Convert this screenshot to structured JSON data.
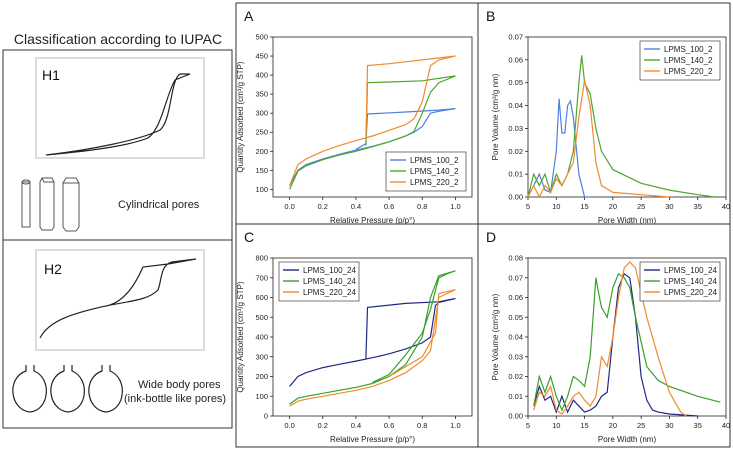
{
  "iupac": {
    "title": "Classification according to IUPAC",
    "h1": {
      "label": "H1",
      "caption": "Cylindrical pores"
    },
    "h2": {
      "label": "H2",
      "caption": "Wide body pores",
      "caption2": "(ink-bottle like pores)"
    }
  },
  "chart_data": [
    {
      "type": "line",
      "panel": "A",
      "xlabel": "Relative Pressure (p/p°)",
      "ylabel": "Quantity Adsorbed (cm³/g STP)",
      "xlim": [
        -0.1,
        1.1
      ],
      "ylim": [
        80,
        500
      ],
      "xticks": [
        {
          "value": 0,
          "label": "0.0"
        },
        0.2,
        0.4,
        0.6,
        0.8,
        {
          "value": 1,
          "label": "1.0"
        }
      ],
      "yticks": [
        100,
        150,
        200,
        250,
        300,
        350,
        400,
        450,
        500
      ],
      "legend": "lower right",
      "series": [
        {
          "name": "LPMS_100_2",
          "color": "#4f7fe0",
          "x": [
            0,
            0.05,
            0.1,
            0.2,
            0.3,
            0.4,
            0.5,
            0.6,
            0.7,
            0.75,
            0.8,
            0.85,
            0.9,
            1.0,
            0.9,
            0.7,
            0.47,
            0.46,
            0.4
          ],
          "values": [
            110,
            150,
            165,
            180,
            192,
            203,
            213,
            225,
            240,
            250,
            265,
            300,
            305,
            312,
            308,
            303,
            298,
            220,
            205
          ]
        },
        {
          "name": "LPMS_140_2",
          "color": "#4ea72e",
          "x": [
            0,
            0.05,
            0.1,
            0.2,
            0.3,
            0.4,
            0.5,
            0.6,
            0.7,
            0.75,
            0.8,
            0.85,
            0.9,
            1.0,
            0.8,
            0.6,
            0.47,
            0.46
          ],
          "values": [
            100,
            148,
            162,
            178,
            190,
            200,
            212,
            225,
            240,
            252,
            300,
            355,
            380,
            398,
            385,
            382,
            380,
            215
          ]
        },
        {
          "name": "LPMS_220_2",
          "color": "#f28a2e",
          "x": [
            0,
            0.05,
            0.1,
            0.2,
            0.3,
            0.4,
            0.5,
            0.6,
            0.7,
            0.75,
            0.8,
            0.85,
            0.9,
            1.0,
            0.8,
            0.6,
            0.47,
            0.46
          ],
          "values": [
            110,
            165,
            180,
            200,
            215,
            228,
            240,
            255,
            270,
            285,
            330,
            425,
            440,
            450,
            440,
            430,
            425,
            230
          ]
        }
      ]
    },
    {
      "type": "line",
      "panel": "B",
      "xlabel": "Pore Width (nm)",
      "ylabel": "Pore Volume (cm³/g nm)",
      "xlim": [
        5,
        40
      ],
      "ylim": [
        0,
        0.07
      ],
      "xticks": [
        5,
        10,
        15,
        20,
        25,
        30,
        35,
        40
      ],
      "yticks": [
        {
          "value": 0,
          "label": "0.00"
        },
        0.01,
        0.02,
        0.03,
        0.04,
        0.05,
        0.06,
        0.07
      ],
      "legend": "upper right",
      "series": [
        {
          "name": "LPMS_100_2",
          "color": "#4f7fe0",
          "x": [
            5,
            6,
            7,
            8,
            9,
            10,
            10.5,
            11,
            11.5,
            12,
            12.5,
            13,
            14,
            15,
            16
          ],
          "values": [
            0,
            0.005,
            0.01,
            0.003,
            0.002,
            0.02,
            0.043,
            0.028,
            0.028,
            0.04,
            0.042,
            0.035,
            0.01,
            0,
            0
          ]
        },
        {
          "name": "LPMS_140_2",
          "color": "#4ea72e",
          "x": [
            5,
            6,
            7,
            8,
            9,
            10,
            11,
            12,
            13,
            14,
            14.5,
            15,
            16,
            17,
            18,
            20,
            25,
            30,
            35,
            38
          ],
          "values": [
            0,
            0.01,
            0.005,
            0.01,
            0.002,
            0.01,
            0.005,
            0.01,
            0.02,
            0.05,
            0.062,
            0.05,
            0.045,
            0.03,
            0.02,
            0.012,
            0.006,
            0.003,
            0.001,
            0
          ]
        },
        {
          "name": "LPMS_220_2",
          "color": "#f28a2e",
          "x": [
            5,
            6,
            7,
            8,
            9,
            10,
            11,
            12,
            13,
            14,
            15,
            16,
            17,
            18,
            20,
            25,
            30
          ],
          "values": [
            0,
            0.005,
            0,
            0.005,
            0.002,
            0.008,
            0.005,
            0.01,
            0.015,
            0.035,
            0.051,
            0.04,
            0.015,
            0.005,
            0.002,
            0.001,
            0
          ]
        }
      ]
    },
    {
      "type": "line",
      "panel": "C",
      "xlabel": "Relative Pressure (p/p°)",
      "ylabel": "Quantity Adsorbed (cm³/g STP)",
      "xlim": [
        -0.1,
        1.1
      ],
      "ylim": [
        0,
        800
      ],
      "xticks": [
        {
          "value": 0,
          "label": "0.0"
        },
        0.2,
        0.4,
        0.6,
        0.8,
        {
          "value": 1,
          "label": "1.0"
        }
      ],
      "yticks": [
        0,
        100,
        200,
        300,
        400,
        500,
        600,
        700,
        800
      ],
      "legend": "upper left",
      "series": [
        {
          "name": "LPMS_100_24",
          "color": "#1f2a80",
          "x": [
            0,
            0.05,
            0.1,
            0.2,
            0.3,
            0.4,
            0.5,
            0.6,
            0.7,
            0.8,
            0.85,
            0.88,
            0.9,
            1.0,
            0.9,
            0.7,
            0.47,
            0.46
          ],
          "values": [
            150,
            200,
            220,
            245,
            262,
            278,
            295,
            315,
            340,
            370,
            400,
            560,
            575,
            595,
            578,
            570,
            550,
            290
          ]
        },
        {
          "name": "LPMS_140_24",
          "color": "#3aa02a",
          "x": [
            0,
            0.05,
            0.1,
            0.2,
            0.3,
            0.4,
            0.5,
            0.6,
            0.7,
            0.8,
            0.85,
            0.9,
            1.0,
            0.95,
            0.9,
            0.85,
            0.8,
            0.7,
            0.6,
            0.5
          ],
          "values": [
            60,
            90,
            100,
            115,
            130,
            145,
            165,
            200,
            260,
            400,
            600,
            710,
            735,
            720,
            700,
            540,
            420,
            310,
            210,
            170
          ]
        },
        {
          "name": "LPMS_220_24",
          "color": "#f28a2e",
          "x": [
            0,
            0.05,
            0.1,
            0.2,
            0.3,
            0.4,
            0.5,
            0.6,
            0.7,
            0.8,
            0.85,
            0.9,
            1.0,
            0.9,
            0.88,
            0.8,
            0.7,
            0.6
          ],
          "values": [
            50,
            75,
            85,
            100,
            115,
            130,
            150,
            180,
            220,
            280,
            330,
            600,
            640,
            620,
            420,
            300,
            250,
            200
          ]
        }
      ]
    },
    {
      "type": "line",
      "panel": "D",
      "xlabel": "Pore Width (nm)",
      "ylabel": "Pore Volume (cm³/g nm)",
      "xlim": [
        5,
        40
      ],
      "ylim": [
        0,
        0.08
      ],
      "xticks": [
        5,
        10,
        15,
        20,
        25,
        30,
        35,
        40
      ],
      "yticks": [
        {
          "value": 0,
          "label": "0.00"
        },
        0.01,
        0.02,
        0.03,
        0.04,
        0.05,
        0.06,
        0.07,
        0.08
      ],
      "legend": "upper right",
      "series": [
        {
          "name": "LPMS_100_24",
          "color": "#1f2a80",
          "x": [
            6,
            7,
            8,
            9,
            10,
            11,
            12,
            13,
            14,
            15,
            16,
            17,
            18,
            19,
            20,
            21,
            22,
            23,
            24,
            25,
            26,
            27,
            28,
            30,
            35
          ],
          "values": [
            0.005,
            0.015,
            0.008,
            0.01,
            0.002,
            0.01,
            0.002,
            0.008,
            0.005,
            0.002,
            0.003,
            0.005,
            0.01,
            0.012,
            0.04,
            0.065,
            0.072,
            0.07,
            0.05,
            0.02,
            0.008,
            0.003,
            0.002,
            0.001,
            0
          ]
        },
        {
          "name": "LPMS_140_24",
          "color": "#3aa02a",
          "x": [
            6,
            7,
            8,
            9,
            10,
            11,
            12,
            13,
            14,
            15,
            16,
            17,
            17.5,
            18,
            19,
            20,
            21,
            22,
            23,
            24,
            26,
            28,
            30,
            35,
            39
          ],
          "values": [
            0.005,
            0.02,
            0.012,
            0.02,
            0.01,
            0.003,
            0.01,
            0.02,
            0.018,
            0.015,
            0.03,
            0.07,
            0.062,
            0.055,
            0.05,
            0.065,
            0.072,
            0.07,
            0.065,
            0.05,
            0.025,
            0.018,
            0.015,
            0.01,
            0.007
          ]
        },
        {
          "name": "LPMS_220_24",
          "color": "#f28a2e",
          "x": [
            6,
            7,
            8,
            9,
            10,
            11,
            12,
            13,
            14,
            15,
            16,
            17,
            18,
            19,
            20,
            21,
            22,
            23,
            24,
            26,
            28,
            30,
            32,
            33
          ],
          "values": [
            0.003,
            0.012,
            0.01,
            0.015,
            0.003,
            0.001,
            0.005,
            0.01,
            0.012,
            0.008,
            0.005,
            0.01,
            0.03,
            0.025,
            0.04,
            0.06,
            0.075,
            0.078,
            0.075,
            0.05,
            0.03,
            0.012,
            0.002,
            0
          ]
        }
      ]
    }
  ]
}
